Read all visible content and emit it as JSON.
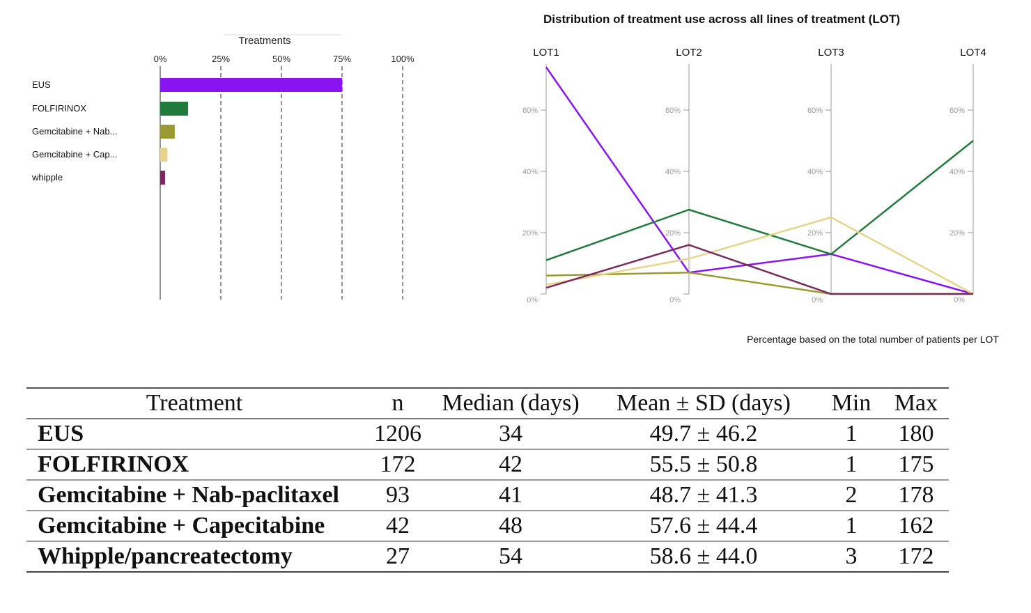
{
  "bar_chart": {
    "chart_data": {
      "type": "bar",
      "orientation": "horizontal",
      "title": "Treatments",
      "xlabel": "",
      "ylabel": "",
      "xlim": [
        0,
        100
      ],
      "tick_labels": [
        "0%",
        "25%",
        "50%",
        "75%",
        "100%"
      ],
      "tick_values": [
        0,
        25,
        50,
        75,
        100
      ],
      "grid": "dashed vertical",
      "categories": [
        "EUS",
        "FOLFIRINOX",
        "Gemcitabine + Nab...",
        "Gemcitabine + Cap...",
        "whipple"
      ],
      "values": [
        75,
        11.5,
        6,
        3,
        2
      ],
      "colors": [
        "#8a14f0",
        "#1f7a3c",
        "#9a9a32",
        "#e6d48a",
        "#7a2a5c"
      ]
    }
  },
  "line_chart": {
    "chart_data": {
      "type": "line",
      "title": "Distribution of treatment use across all lines of treatment (LOT)",
      "xlabel": "",
      "ylabel": "",
      "ylim": [
        0,
        75
      ],
      "categories": [
        "LOT1",
        "LOT2",
        "LOT3",
        "LOT4"
      ],
      "tick_labels": [
        "0%",
        "20%",
        "40%",
        "60%"
      ],
      "tick_values": [
        0,
        20,
        40,
        60
      ],
      "footnote": "Percentage based on the total number of patients per LOT",
      "series": [
        {
          "values": [
            74,
            7,
            13,
            0
          ],
          "color": "#8a14f0"
        },
        {
          "values": [
            11,
            27.5,
            13,
            50
          ],
          "color": "#1f7a3c"
        },
        {
          "values": [
            6,
            7,
            0,
            0
          ],
          "color": "#9a9a32"
        },
        {
          "values": [
            3,
            11.5,
            25,
            0
          ],
          "color": "#e6d48a"
        },
        {
          "values": [
            2,
            16,
            0,
            0
          ],
          "color": "#7a2a5c"
        }
      ]
    }
  },
  "table": {
    "headers": [
      "Treatment",
      "n",
      "Median (days)",
      "Mean ± SD (days)",
      "Min",
      "Max"
    ],
    "rows": [
      [
        "EUS",
        "1206",
        "34",
        "49.7 ± 46.2",
        "1",
        "180"
      ],
      [
        "FOLFIRINOX",
        "172",
        "42",
        "55.5 ± 50.8",
        "1",
        "175"
      ],
      [
        "Gemcitabine + Nab-paclitaxel",
        "93",
        "41",
        "48.7 ± 41.3",
        "2",
        "178"
      ],
      [
        "Gemcitabine + Capecitabine",
        "42",
        "48",
        "57.6 ± 44.4",
        "1",
        "162"
      ],
      [
        "Whipple/pancreatectomy",
        "27",
        "54",
        "58.6 ± 44.0",
        "3",
        "172"
      ]
    ]
  }
}
